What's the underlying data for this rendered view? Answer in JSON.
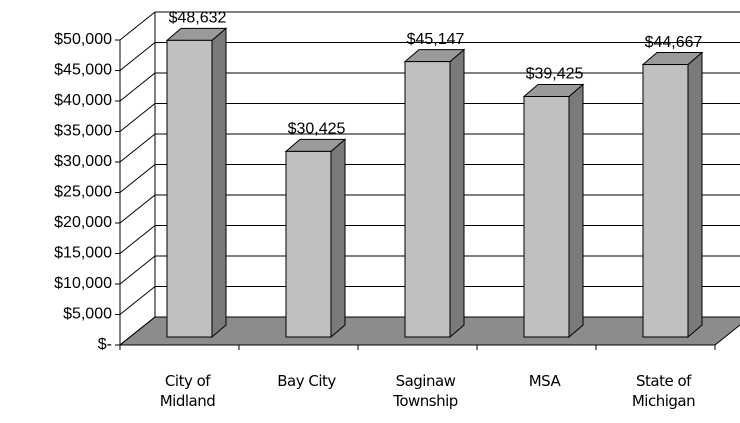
{
  "chart_data": {
    "type": "bar3d",
    "categories": [
      "City of Midland",
      "Bay City",
      "Saginaw Township",
      "MSA",
      "State of Michigan"
    ],
    "values": [
      48632,
      30425,
      45147,
      39425,
      44667
    ],
    "value_labels": [
      "$48,632",
      "$30,425",
      "$45,147",
      "$39,425",
      "$44,667"
    ],
    "color": "#c0c0c0",
    "ylim": [
      0,
      50000
    ],
    "yticks": [
      {
        "value": 0,
        "label": "$-"
      },
      {
        "value": 5000,
        "label": "$5,000"
      },
      {
        "value": 10000,
        "label": "$10,000"
      },
      {
        "value": 15000,
        "label": "$15,000"
      },
      {
        "value": 20000,
        "label": "$20,000"
      },
      {
        "value": 25000,
        "label": "$25,000"
      },
      {
        "value": 30000,
        "label": "$30,000"
      },
      {
        "value": 35000,
        "label": "$35,000"
      },
      {
        "value": 40000,
        "label": "$40,000"
      },
      {
        "value": 45000,
        "label": "$45,000"
      },
      {
        "value": 50000,
        "label": "$50,000"
      }
    ],
    "grid": true
  }
}
